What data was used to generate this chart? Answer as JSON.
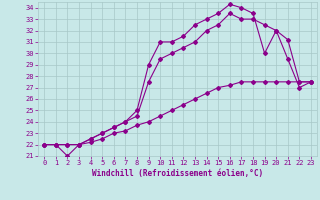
{
  "xlabel": "Windchill (Refroidissement éolien,°C)",
  "ylabel": "",
  "bg_color": "#c8e8e8",
  "line_color": "#8b008b",
  "grid_color": "#a8c8c8",
  "xlim": [
    -0.5,
    23.5
  ],
  "ylim": [
    21,
    34.5
  ],
  "xticks": [
    0,
    1,
    2,
    3,
    4,
    5,
    6,
    7,
    8,
    9,
    10,
    11,
    12,
    13,
    14,
    15,
    16,
    17,
    18,
    19,
    20,
    21,
    22,
    23
  ],
  "yticks": [
    21,
    22,
    23,
    24,
    25,
    26,
    27,
    28,
    29,
    30,
    31,
    32,
    33,
    34
  ],
  "line1_x": [
    0,
    1,
    2,
    3,
    4,
    5,
    6,
    7,
    8,
    9,
    10,
    11,
    12,
    13,
    14,
    15,
    16,
    17,
    18,
    19,
    20,
    21,
    22,
    23
  ],
  "line1_y": [
    22,
    22,
    21,
    22,
    22.5,
    23,
    23.5,
    24,
    25,
    29,
    31,
    31,
    31.5,
    32.5,
    33,
    33.5,
    34.3,
    34,
    33.5,
    30,
    32,
    29.5,
    27,
    27.5
  ],
  "line2_x": [
    0,
    1,
    2,
    3,
    4,
    5,
    6,
    7,
    8,
    9,
    10,
    11,
    12,
    13,
    14,
    15,
    16,
    17,
    18,
    19,
    20,
    21,
    22,
    23
  ],
  "line2_y": [
    22,
    22,
    22,
    22,
    22.5,
    23,
    23.5,
    24,
    24.5,
    27.5,
    29.5,
    30,
    30.5,
    31,
    32,
    32.5,
    33.5,
    33,
    33,
    32.5,
    32,
    31.2,
    27.5,
    27.5
  ],
  "line3_x": [
    0,
    1,
    2,
    3,
    4,
    5,
    6,
    7,
    8,
    9,
    10,
    11,
    12,
    13,
    14,
    15,
    16,
    17,
    18,
    19,
    20,
    21,
    22,
    23
  ],
  "line3_y": [
    22,
    22,
    22,
    22,
    22.2,
    22.5,
    23,
    23.2,
    23.7,
    24,
    24.5,
    25,
    25.5,
    26,
    26.5,
    27,
    27.2,
    27.5,
    27.5,
    27.5,
    27.5,
    27.5,
    27.5,
    27.5
  ],
  "marker": "D",
  "markersize": 2,
  "linewidth": 0.8,
  "tick_fontsize": 5,
  "xlabel_fontsize": 5.5
}
